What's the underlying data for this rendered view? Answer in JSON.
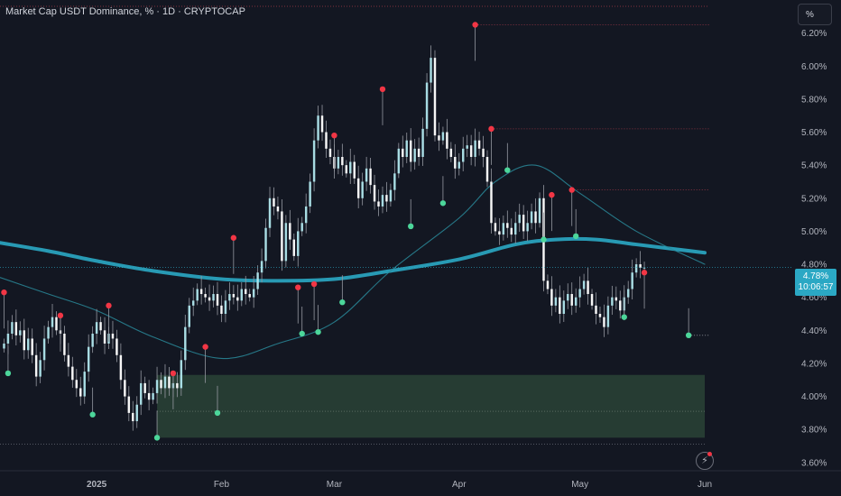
{
  "header": {
    "title": "Market Cap USDT Dominance, % · 1D · CRYPTOCAP",
    "unit_button": "%"
  },
  "price_tag": {
    "value": "4.78%",
    "countdown": "10:06:57"
  },
  "colors": {
    "background": "#131722",
    "up_candle": "#b2ebf2",
    "down_candle": "#ffffff",
    "wick": "#9598a1",
    "thick_ma": "#2ba8c4",
    "thin_ma": "#2a8a9a",
    "pivot_high": "#f23645",
    "pivot_low": "#4cd69a",
    "zone_fill": "#2e4a3a",
    "level_line": "#a83a4a",
    "price_tag": "#2ba8c4"
  },
  "chart_data": {
    "type": "candlestick",
    "title": "Market Cap USDT Dominance, % · 1D · CRYPTOCAP",
    "xlabel": "",
    "ylabel": "",
    "ylim": [
      3.55,
      6.4
    ],
    "y_ticks": [
      "6.20%",
      "6.00%",
      "5.80%",
      "5.60%",
      "5.40%",
      "5.20%",
      "5.00%",
      "4.80%",
      "4.60%",
      "4.40%",
      "4.20%",
      "4.00%",
      "3.80%",
      "3.60%"
    ],
    "y_tick_values": [
      6.2,
      6.0,
      5.8,
      5.6,
      5.4,
      5.2,
      5.0,
      4.8,
      4.6,
      4.4,
      4.2,
      4.0,
      3.8,
      3.6
    ],
    "x_ticks": [
      {
        "label": "2025",
        "date": "2025-01-01",
        "bold": true
      },
      {
        "label": "Feb",
        "date": "2025-02-01",
        "bold": false
      },
      {
        "label": "Mar",
        "date": "2025-03-01",
        "bold": false
      },
      {
        "label": "Apr",
        "date": "2025-04-01",
        "bold": false
      },
      {
        "label": "May",
        "date": "2025-05-01",
        "bold": false
      },
      {
        "label": "Jun",
        "date": "2025-06-01",
        "bold": false
      }
    ],
    "x_range": [
      "2024-12-08",
      "2025-06-01"
    ],
    "grid": false,
    "close": [
      4.32,
      4.38,
      4.45,
      4.37,
      4.4,
      4.28,
      4.35,
      4.25,
      4.12,
      4.22,
      4.35,
      4.42,
      4.48,
      4.4,
      4.38,
      4.25,
      4.18,
      4.1,
      4.05,
      4.0,
      4.15,
      4.3,
      4.38,
      4.45,
      4.4,
      4.32,
      4.38,
      4.35,
      4.25,
      4.1,
      4.0,
      3.9,
      3.85,
      3.95,
      4.08,
      4.02,
      3.98,
      4.02,
      4.1,
      4.05,
      4.12,
      4.05,
      4.08,
      4.05,
      4.22,
      4.42,
      4.55,
      4.58,
      4.65,
      4.62,
      4.6,
      4.58,
      4.62,
      4.55,
      4.5,
      4.58,
      4.62,
      4.6,
      4.58,
      4.65,
      4.62,
      4.6,
      4.65,
      4.75,
      4.82,
      5.02,
      5.2,
      5.15,
      5.12,
      4.82,
      5.05,
      4.95,
      4.85,
      5.0,
      5.05,
      5.15,
      5.3,
      5.55,
      5.7,
      5.6,
      5.5,
      5.45,
      5.38,
      5.45,
      5.4,
      5.35,
      5.42,
      5.32,
      5.2,
      5.3,
      5.38,
      5.28,
      5.18,
      5.15,
      5.22,
      5.18,
      5.25,
      5.35,
      5.5,
      5.45,
      5.55,
      5.42,
      5.5,
      5.45,
      5.62,
      5.9,
      6.05,
      5.58,
      5.55,
      5.6,
      5.5,
      5.45,
      5.38,
      5.42,
      5.5,
      5.52,
      5.45,
      5.55,
      5.5,
      5.45,
      5.3,
      5.05,
      5.0,
      4.98,
      5.05,
      5.02,
      4.98,
      5.05,
      5.1,
      5.0,
      5.05,
      5.12,
      5.05,
      5.2,
      4.7,
      4.65,
      4.55,
      4.6,
      4.5,
      4.58,
      4.62,
      4.55,
      4.6,
      4.65,
      4.7,
      4.62,
      4.55,
      4.5,
      4.48,
      4.42,
      4.55,
      4.6,
      4.58,
      4.52,
      4.6,
      4.65,
      4.75,
      4.8,
      4.78,
      4.78
    ],
    "pivot_highs": [
      {
        "date": "2024-12-09",
        "value": 4.63
      },
      {
        "date": "2024-12-23",
        "value": 4.49
      },
      {
        "date": "2025-01-04",
        "value": 4.55
      },
      {
        "date": "2025-01-20",
        "value": 4.14
      },
      {
        "date": "2025-01-28",
        "value": 4.3
      },
      {
        "date": "2025-02-04",
        "value": 4.96
      },
      {
        "date": "2025-02-20",
        "value": 4.66
      },
      {
        "date": "2025-02-24",
        "value": 4.68
      },
      {
        "date": "2025-03-01",
        "value": 5.58
      },
      {
        "date": "2025-03-13",
        "value": 5.86
      },
      {
        "date": "2025-04-05",
        "value": 6.25
      },
      {
        "date": "2025-04-09",
        "value": 5.62
      },
      {
        "date": "2025-04-24",
        "value": 5.22
      },
      {
        "date": "2025-04-29",
        "value": 5.25
      },
      {
        "date": "2025-05-17",
        "value": 4.75
      }
    ],
    "pivot_lows": [
      {
        "date": "2024-12-10",
        "value": 4.14
      },
      {
        "date": "2024-12-31",
        "value": 3.89
      },
      {
        "date": "2025-01-16",
        "value": 3.75
      },
      {
        "date": "2025-01-31",
        "value": 3.9
      },
      {
        "date": "2025-02-21",
        "value": 4.38
      },
      {
        "date": "2025-02-25",
        "value": 4.39
      },
      {
        "date": "2025-03-03",
        "value": 4.57
      },
      {
        "date": "2025-03-20",
        "value": 5.03
      },
      {
        "date": "2025-03-28",
        "value": 5.17
      },
      {
        "date": "2025-04-13",
        "value": 5.37
      },
      {
        "date": "2025-04-22",
        "value": 4.95
      },
      {
        "date": "2025-04-30",
        "value": 4.97
      },
      {
        "date": "2025-05-12",
        "value": 4.48
      },
      {
        "date": "2025-05-28",
        "value": 4.37
      }
    ],
    "horizontal_levels": [
      {
        "from": "2025-04-05",
        "value": 6.25,
        "style": "dotted-red"
      },
      {
        "from": "2025-04-09",
        "value": 5.62,
        "style": "dotted-red"
      },
      {
        "from": "2025-04-29",
        "value": 5.25,
        "style": "dotted-red"
      },
      {
        "from": "2025-05-28",
        "value": 4.37,
        "style": "dotted-white"
      }
    ],
    "zone": {
      "from": "2025-01-16",
      "to": "2025-06-01",
      "low": 3.75,
      "high": 4.13
    },
    "zone_mid": 3.91,
    "moving_averages": [
      {
        "style": "thick",
        "points": [
          {
            "date": "2024-12-08",
            "value": 4.93
          },
          {
            "date": "2024-12-20",
            "value": 4.88
          },
          {
            "date": "2025-01-01",
            "value": 4.82
          },
          {
            "date": "2025-01-15",
            "value": 4.76
          },
          {
            "date": "2025-02-01",
            "value": 4.71
          },
          {
            "date": "2025-02-15",
            "value": 4.7
          },
          {
            "date": "2025-03-01",
            "value": 4.71
          },
          {
            "date": "2025-03-15",
            "value": 4.76
          },
          {
            "date": "2025-04-01",
            "value": 4.83
          },
          {
            "date": "2025-04-15",
            "value": 4.92
          },
          {
            "date": "2025-04-25",
            "value": 4.95
          },
          {
            "date": "2025-05-05",
            "value": 4.95
          },
          {
            "date": "2025-05-15",
            "value": 4.92
          },
          {
            "date": "2025-06-01",
            "value": 4.87
          }
        ]
      },
      {
        "style": "thin",
        "points": [
          {
            "date": "2024-12-08",
            "value": 4.72
          },
          {
            "date": "2024-12-20",
            "value": 4.62
          },
          {
            "date": "2025-01-01",
            "value": 4.52
          },
          {
            "date": "2025-01-15",
            "value": 4.36
          },
          {
            "date": "2025-02-01",
            "value": 4.23
          },
          {
            "date": "2025-02-15",
            "value": 4.32
          },
          {
            "date": "2025-03-01",
            "value": 4.45
          },
          {
            "date": "2025-03-15",
            "value": 4.76
          },
          {
            "date": "2025-04-01",
            "value": 5.08
          },
          {
            "date": "2025-04-10",
            "value": 5.3
          },
          {
            "date": "2025-04-20",
            "value": 5.4
          },
          {
            "date": "2025-05-01",
            "value": 5.23
          },
          {
            "date": "2025-05-15",
            "value": 5.0
          },
          {
            "date": "2025-06-01",
            "value": 4.8
          }
        ]
      }
    ],
    "current_value": 4.78
  }
}
